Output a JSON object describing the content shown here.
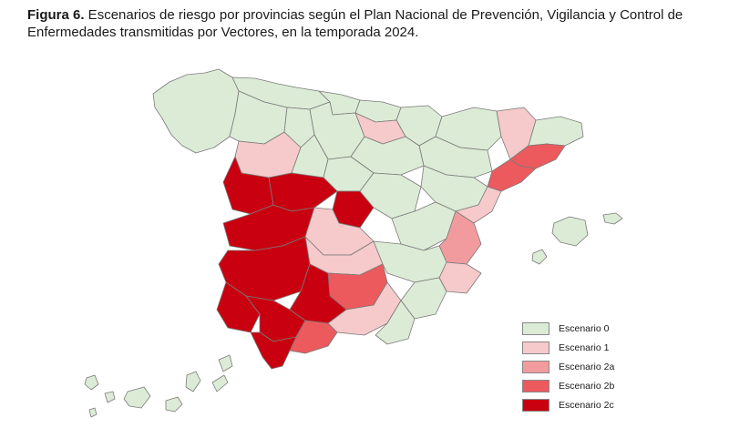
{
  "figure": {
    "label": "Figura 6.",
    "caption": " Escenarios de riesgo por provincias según el Plan Nacional de Prevención, Vigilancia y Control de Enfermedades transmitidas por Vectores, en la temporada 2024."
  },
  "legend": {
    "items": [
      {
        "label": "Escenario 0",
        "color": "#dcebd6"
      },
      {
        "label": "Escenario 1",
        "color": "#f6c9cb"
      },
      {
        "label": "Escenario 2a",
        "color": "#f29b9e"
      },
      {
        "label": "Escenario 2b",
        "color": "#ec5a5e"
      },
      {
        "label": "Escenario 2c",
        "color": "#c8000f"
      }
    ]
  },
  "colors": {
    "border": "#7a7a7a"
  }
}
